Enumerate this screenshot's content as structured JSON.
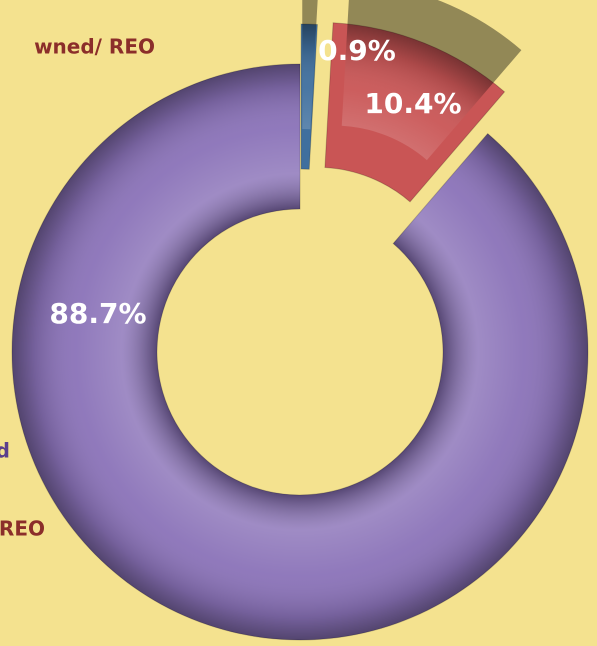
{
  "chart_data": {
    "type": "pie",
    "donut": true,
    "values": [
      0.9,
      10.4,
      88.7
    ],
    "value_labels": [
      "0.9%",
      "10.4%",
      "88.7%"
    ],
    "colors": [
      "#3f6f9e",
      "#c95555",
      "#8a72b8"
    ],
    "annotations": [
      {
        "text": "wned/ REO",
        "color": "#8b2e2a"
      },
      {
        "text": "d",
        "color": "#5b3f8c"
      },
      {
        "text": "REO",
        "color": "#8b2e2a"
      }
    ]
  }
}
